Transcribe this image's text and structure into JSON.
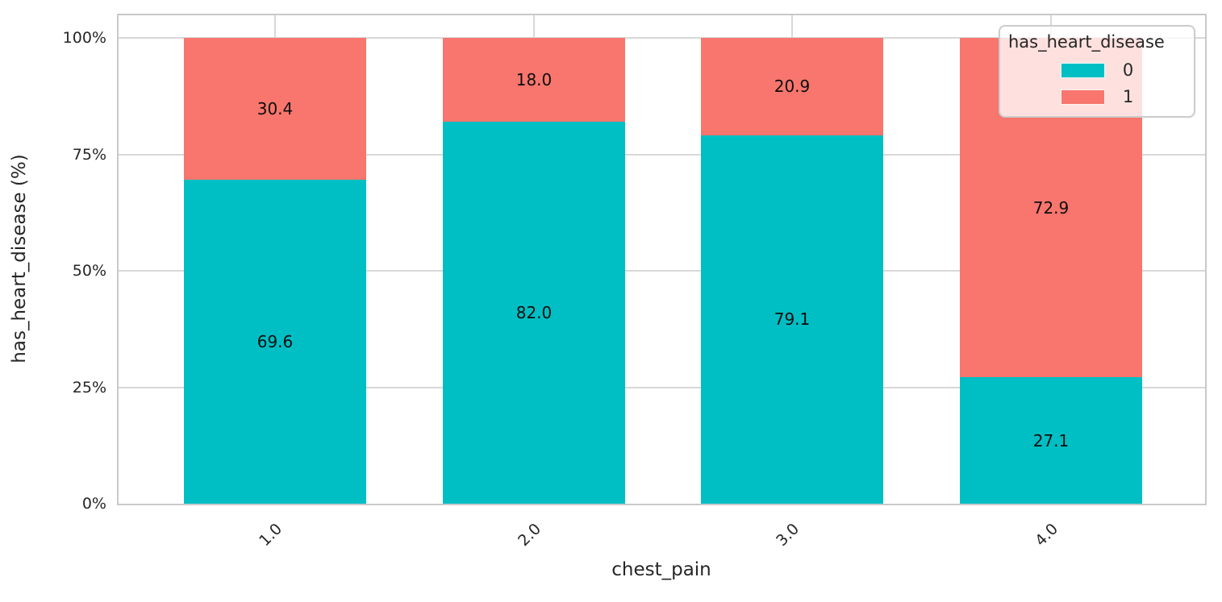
{
  "figure": {
    "background": "#ffffff",
    "text_color": "#262626",
    "grid_color": "#d8d8d8",
    "spine_color": "#c9c9c9",
    "xlabel": "chest_pain",
    "ylabel": "has_heart_disease (%)",
    "legend": {
      "title": "has_heart_disease",
      "position": "upper right",
      "background": "rgba(255,255,255,0.78)",
      "entries": [
        {
          "label": "0",
          "color": "#00BFC4"
        },
        {
          "label": "1",
          "color": "#F8766D"
        }
      ]
    }
  },
  "chart_data": {
    "type": "bar",
    "stacked": true,
    "normalized": "percent",
    "title": "",
    "xlabel": "chest_pain",
    "ylabel": "has_heart_disease (%)",
    "categories": [
      "1.0",
      "2.0",
      "3.0",
      "4.0"
    ],
    "series": [
      {
        "name": "0",
        "color": "#00BFC4",
        "values": [
          69.6,
          82.0,
          79.1,
          27.1
        ],
        "labels": [
          "69.6",
          "82.0",
          "79.1",
          "27.1"
        ]
      },
      {
        "name": "1",
        "color": "#F8766D",
        "values": [
          30.4,
          18.0,
          20.9,
          72.9
        ],
        "labels": [
          "30.4",
          "18.0",
          "20.9",
          "72.9"
        ]
      }
    ],
    "yticks": [
      {
        "value": 0,
        "label": "0%"
      },
      {
        "value": 25,
        "label": "25%"
      },
      {
        "value": 50,
        "label": "50%"
      },
      {
        "value": 75,
        "label": "75%"
      },
      {
        "value": 100,
        "label": "100%"
      }
    ],
    "ylim": [
      0,
      105.5
    ],
    "grid": true,
    "legend_title": "has_heart_disease",
    "legend_position": "upper right",
    "bar_value_labels_visible": true
  }
}
